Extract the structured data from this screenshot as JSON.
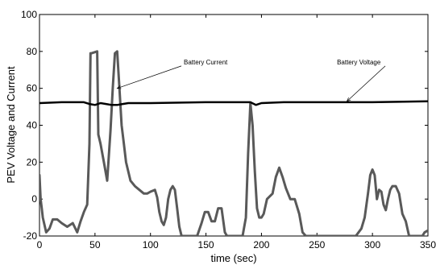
{
  "chart_data": {
    "type": "line",
    "title": "",
    "xlabel": "time (sec)",
    "ylabel": "PEV Voltage and Current",
    "xlim": [
      0,
      350
    ],
    "ylim": [
      -20,
      100
    ],
    "x_ticks": [
      "0",
      "50",
      "100",
      "150",
      "200",
      "250",
      "300",
      "350"
    ],
    "y_ticks": [
      "-20",
      "0",
      "20",
      "40",
      "60",
      "80",
      "100"
    ],
    "grid": false,
    "legend": "none",
    "series": [
      {
        "name": "Battery Current",
        "color": "#595959",
        "x": [
          0,
          1,
          2,
          3,
          6,
          9,
          12,
          16,
          20,
          25,
          30,
          34,
          37,
          40,
          43,
          45,
          46,
          47,
          52,
          53,
          55,
          58,
          61,
          64,
          66,
          68,
          70,
          72,
          74,
          76,
          78,
          82,
          86,
          90,
          94,
          97,
          100,
          104,
          106,
          108,
          110,
          112,
          114,
          116,
          118,
          120,
          122,
          124,
          126,
          128,
          131,
          136,
          142,
          146,
          149,
          152,
          155,
          158,
          161,
          164,
          167,
          169,
          171,
          174,
          178,
          183,
          186,
          188,
          190,
          192,
          194,
          196,
          198,
          200,
          202,
          205,
          210,
          213,
          216,
          219,
          222,
          226,
          230,
          234,
          237,
          240,
          243,
          247,
          255,
          265,
          275,
          285,
          290,
          293,
          296,
          298,
          300,
          302,
          304,
          306,
          308,
          310,
          312,
          314,
          316,
          318,
          321,
          324,
          327,
          330,
          333,
          336,
          339,
          342,
          345,
          347,
          350
        ],
        "y": [
          13,
          0,
          -5,
          -10,
          -18,
          -16,
          -11,
          -11,
          -13,
          -15,
          -13,
          -18,
          -12,
          -7,
          -3,
          30,
          79,
          79,
          80,
          35,
          30,
          20,
          10,
          37,
          60,
          79,
          80,
          60,
          40,
          30,
          20,
          10,
          7,
          5,
          3,
          3,
          4,
          5,
          1,
          -7,
          -12,
          -14,
          -10,
          0,
          5,
          7,
          5,
          -5,
          -15,
          -20,
          -20,
          -20,
          -20,
          -13,
          -7,
          -7,
          -12,
          -12,
          -5,
          -5,
          -18,
          -20,
          -20,
          -20,
          -20,
          -20,
          -10,
          25,
          52,
          40,
          15,
          -5,
          -10,
          -10,
          -8,
          0,
          3,
          12,
          17,
          12,
          6,
          0,
          0,
          -8,
          -18,
          -20,
          -20,
          -20,
          -20,
          -20,
          -20,
          -20,
          -16,
          -10,
          3,
          13,
          16,
          13,
          0,
          5,
          4,
          -3,
          -6,
          0,
          5,
          7,
          7,
          3,
          -8,
          -12,
          -20,
          -20,
          -20,
          -20,
          -20,
          -18,
          -17
        ]
      },
      {
        "name": "Battery Voltage",
        "color": "#000000",
        "x": [
          0,
          20,
          40,
          45,
          50,
          55,
          60,
          65,
          70,
          75,
          80,
          100,
          150,
          190,
          195,
          200,
          220,
          250,
          300,
          350
        ],
        "y": [
          52,
          52.5,
          52.5,
          51.5,
          51,
          52,
          51.5,
          51,
          51,
          51.5,
          52,
          52,
          52.5,
          52.5,
          51,
          52,
          52.5,
          52.5,
          52.5,
          53
        ]
      }
    ],
    "annotations": [
      {
        "text": "Battery Current",
        "text_x": 130,
        "text_y": 73,
        "arrow_to_x": 70,
        "arrow_to_y": 60
      },
      {
        "text": "Battery Voltage",
        "text_x": 268,
        "text_y": 73,
        "arrow_to_x": 277,
        "arrow_to_y": 53
      }
    ]
  }
}
